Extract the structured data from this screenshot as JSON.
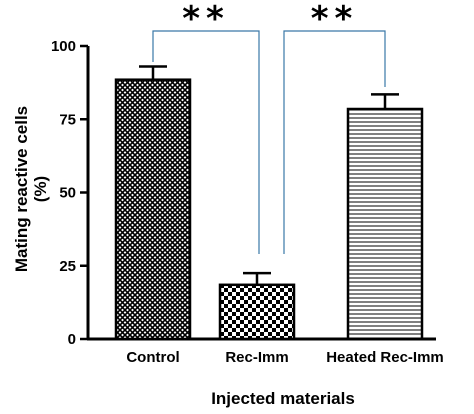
{
  "chart_data": {
    "type": "bar",
    "categories": [
      "Control",
      "Rec-Imm",
      "Heated Rec-Imm"
    ],
    "values": [
      88.5,
      18.5,
      78.5
    ],
    "errors": [
      4.5,
      4,
      5
    ],
    "title": "",
    "xlabel": "Injected materials",
    "ylabel": "Mating reactive cells",
    "ylabel_unit": "(%)",
    "ylim": [
      0,
      100
    ],
    "yticks": [
      0,
      25,
      50,
      75,
      100
    ],
    "ytick_labels": [
      "0",
      "25",
      "50",
      "75",
      "100"
    ],
    "grid": false,
    "significance": [
      {
        "from": "Control",
        "to": "Rec-Imm",
        "label": "**"
      },
      {
        "from": "Rec-Imm",
        "to": "Heated Rec-Imm",
        "label": "**"
      }
    ],
    "bar_patterns": [
      "crosshatch-fine",
      "checkerboard",
      "horizontal-lines"
    ],
    "colors": {
      "bar_fill": "#ffffff",
      "pattern": "#000000",
      "bracket": "#3a78a8",
      "axis": "#000000"
    }
  }
}
